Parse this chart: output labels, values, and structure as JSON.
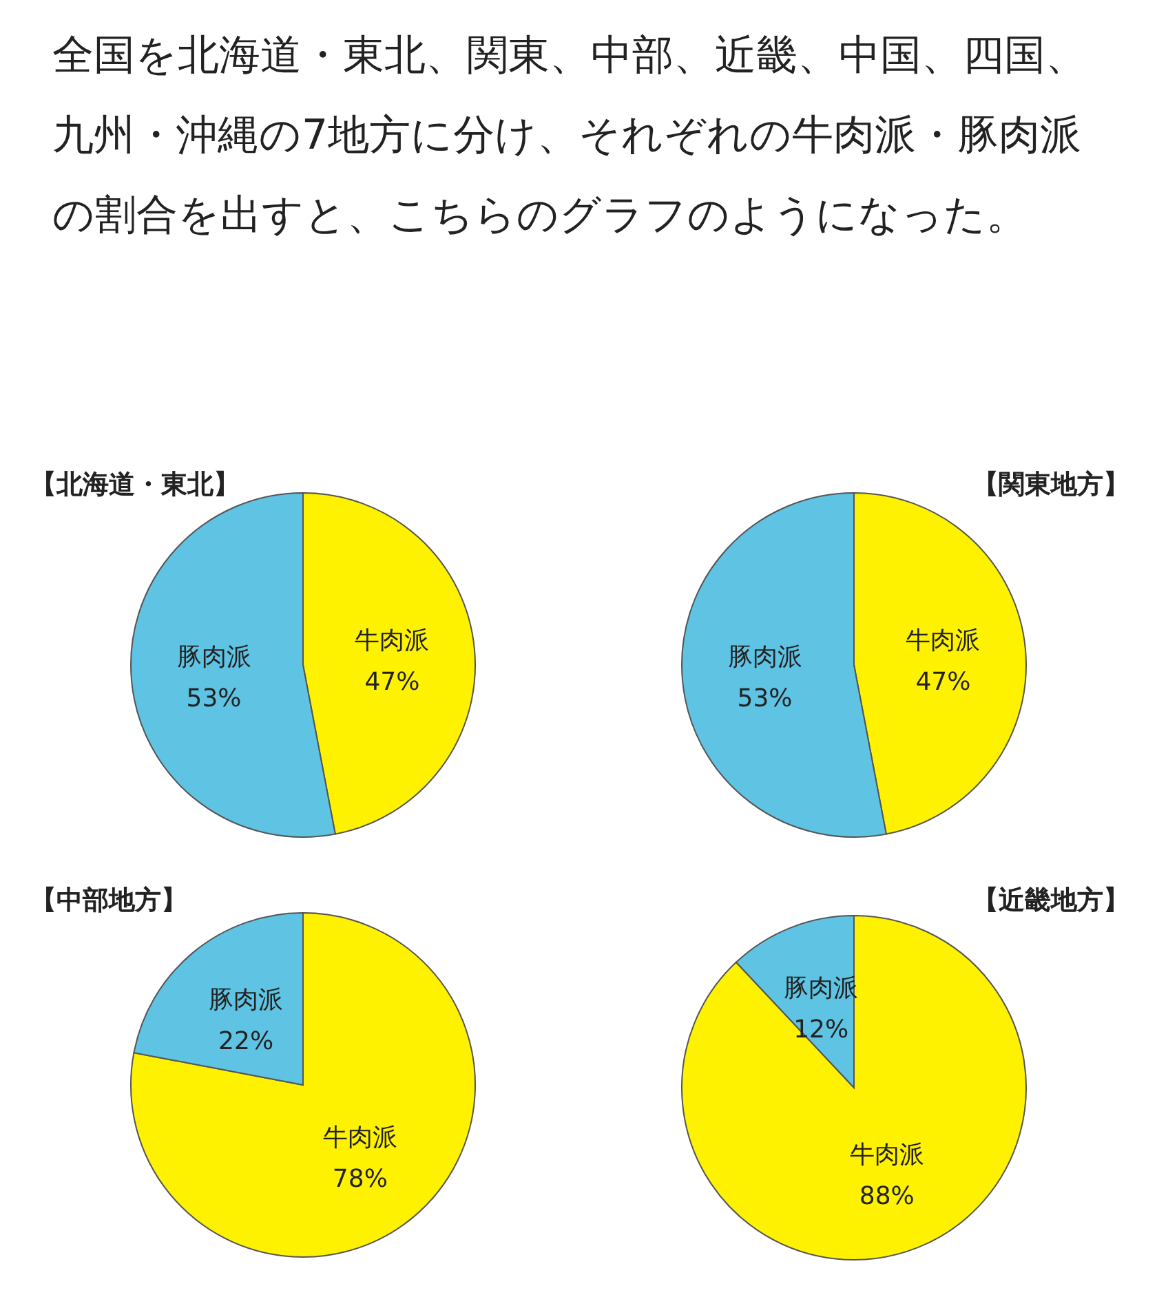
{
  "chart_data": [
    {
      "type": "other",
      "title": "全国を北海道・東北、関東、中部、近畿、中国、四国、九州・沖縄の7地方に分け、それぞれの牛肉派・豚肉派の割合を出すと、こちらのグラフのようになった。"
    },
    {
      "type": "pie",
      "title": "【北海道・東北】",
      "categories": [
        "牛肉派",
        "豚肉派"
      ],
      "values": [
        47,
        53
      ],
      "value_labels": [
        "47%",
        "53%"
      ],
      "colors": [
        "#fff200",
        "#5fc3e4"
      ]
    },
    {
      "type": "pie",
      "title": "【関東地方】",
      "categories": [
        "牛肉派",
        "豚肉派"
      ],
      "values": [
        47,
        53
      ],
      "value_labels": [
        "47%",
        "53%"
      ],
      "colors": [
        "#fff200",
        "#5fc3e4"
      ]
    },
    {
      "type": "pie",
      "title": "【中部地方】",
      "categories": [
        "牛肉派",
        "豚肉派"
      ],
      "values": [
        78,
        22
      ],
      "value_labels": [
        "78%",
        "22%"
      ],
      "colors": [
        "#fff200",
        "#5fc3e4"
      ]
    },
    {
      "type": "pie",
      "title": "【近畿地方】",
      "categories": [
        "牛肉派",
        "豚肉派"
      ],
      "values": [
        88,
        12
      ],
      "value_labels": [
        "88%",
        "12%"
      ],
      "colors": [
        "#fff200",
        "#5fc3e4"
      ]
    }
  ]
}
